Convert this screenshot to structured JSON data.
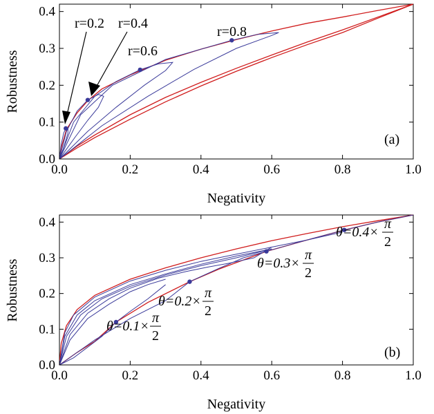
{
  "chart_data": [
    {
      "type": "line",
      "panel_label": "(a)",
      "xlabel": "Negativity",
      "ylabel": "Robustness",
      "xlim": [
        0,
        1
      ],
      "ylim": [
        0,
        0.42
      ],
      "xticks": [
        "0.0",
        "0.2",
        "0.4",
        "0.6",
        "0.8",
        "1.0"
      ],
      "yticks": [
        "0.0",
        "0.1",
        "0.2",
        "0.3",
        "0.4"
      ],
      "boundary_color": "#d01c1c",
      "curve_color": "#3a3a9a",
      "point_color": "#3a3a9a",
      "bounds": {
        "upper": [
          [
            0,
            0
          ],
          [
            0.005,
            0.03
          ],
          [
            0.02,
            0.08
          ],
          [
            0.05,
            0.125
          ],
          [
            0.08,
            0.158
          ],
          [
            0.12,
            0.19
          ],
          [
            0.2,
            0.228
          ],
          [
            0.3,
            0.268
          ],
          [
            0.4,
            0.298
          ],
          [
            0.5,
            0.324
          ],
          [
            0.6,
            0.347
          ],
          [
            0.7,
            0.368
          ],
          [
            0.8,
            0.385
          ],
          [
            0.9,
            0.403
          ],
          [
            1.0,
            0.42
          ]
        ],
        "lower": [
          [
            0,
            0
          ],
          [
            0.05,
            0.03
          ],
          [
            0.1,
            0.058
          ],
          [
            0.2,
            0.108
          ],
          [
            0.3,
            0.155
          ],
          [
            0.4,
            0.198
          ],
          [
            0.5,
            0.238
          ],
          [
            0.6,
            0.275
          ],
          [
            0.7,
            0.31
          ],
          [
            0.8,
            0.343
          ],
          [
            0.9,
            0.382
          ],
          [
            1.0,
            0.42
          ]
        ],
        "lower2": [
          [
            0,
            0
          ],
          [
            0.05,
            0.035
          ],
          [
            0.1,
            0.065
          ],
          [
            0.2,
            0.12
          ],
          [
            0.3,
            0.167
          ],
          [
            0.4,
            0.208
          ],
          [
            0.5,
            0.246
          ],
          [
            0.6,
            0.282
          ],
          [
            0.7,
            0.317
          ],
          [
            0.8,
            0.35
          ],
          [
            0.9,
            0.385
          ],
          [
            1.0,
            0.42
          ]
        ]
      },
      "loops": [
        {
          "label": "r=0.2",
          "point": [
            0.018,
            0.083
          ],
          "path": [
            [
              0,
              0
            ],
            [
              0.005,
              0.04
            ],
            [
              0.012,
              0.07
            ],
            [
              0.018,
              0.083
            ],
            [
              0.024,
              0.082
            ],
            [
              0.024,
              0.07
            ],
            [
              0.018,
              0.05
            ],
            [
              0.01,
              0.025
            ],
            [
              0,
              0
            ]
          ]
        },
        {
          "label": "r=0.4",
          "point": [
            0.08,
            0.16
          ],
          "path": [
            [
              0,
              0
            ],
            [
              0.02,
              0.075
            ],
            [
              0.05,
              0.13
            ],
            [
              0.08,
              0.16
            ],
            [
              0.11,
              0.175
            ],
            [
              0.125,
              0.17
            ],
            [
              0.11,
              0.14
            ],
            [
              0.08,
              0.105
            ],
            [
              0.045,
              0.06
            ],
            [
              0.015,
              0.02
            ],
            [
              0,
              0
            ]
          ]
        },
        {
          "label": "r=0.6",
          "point": [
            0.228,
            0.242
          ],
          "path": [
            [
              0,
              0
            ],
            [
              0.04,
              0.1
            ],
            [
              0.1,
              0.17
            ],
            [
              0.16,
              0.21
            ],
            [
              0.228,
              0.242
            ],
            [
              0.28,
              0.258
            ],
            [
              0.32,
              0.262
            ],
            [
              0.3,
              0.24
            ],
            [
              0.24,
              0.2
            ],
            [
              0.16,
              0.14
            ],
            [
              0.08,
              0.075
            ],
            [
              0.02,
              0.018
            ],
            [
              0,
              0
            ]
          ]
        },
        {
          "label": "r=0.8",
          "point": [
            0.487,
            0.322
          ],
          "path": [
            [
              0,
              0
            ],
            [
              0.06,
              0.12
            ],
            [
              0.15,
              0.2
            ],
            [
              0.3,
              0.27
            ],
            [
              0.487,
              0.322
            ],
            [
              0.56,
              0.338
            ],
            [
              0.62,
              0.343
            ],
            [
              0.6,
              0.335
            ],
            [
              0.5,
              0.3
            ],
            [
              0.38,
              0.243
            ],
            [
              0.25,
              0.17
            ],
            [
              0.12,
              0.09
            ],
            [
              0.03,
              0.022
            ],
            [
              0,
              0
            ]
          ]
        }
      ]
    },
    {
      "type": "line",
      "panel_label": "(b)",
      "xlabel": "Negativity",
      "ylabel": "Robustness",
      "xlim": [
        0,
        1
      ],
      "ylim": [
        0,
        0.42
      ],
      "xticks": [
        "0.0",
        "0.2",
        "0.4",
        "0.6",
        "0.8",
        "1.0"
      ],
      "yticks": [
        "0.0",
        "0.1",
        "0.2",
        "0.3",
        "0.4"
      ],
      "boundary_color": "#d01c1c",
      "curve_color": "#3a3a9a",
      "point_color": "#3a3a9a",
      "bounds": {
        "upper": [
          [
            0,
            0
          ],
          [
            0.005,
            0.06
          ],
          [
            0.02,
            0.11
          ],
          [
            0.05,
            0.155
          ],
          [
            0.1,
            0.195
          ],
          [
            0.2,
            0.24
          ],
          [
            0.3,
            0.272
          ],
          [
            0.4,
            0.3
          ],
          [
            0.5,
            0.325
          ],
          [
            0.6,
            0.348
          ],
          [
            0.7,
            0.368
          ],
          [
            0.8,
            0.387
          ],
          [
            0.9,
            0.404
          ],
          [
            1.0,
            0.42
          ]
        ],
        "lower": [
          [
            0,
            0
          ],
          [
            0.05,
            0.035
          ],
          [
            0.1,
            0.066
          ],
          [
            0.16,
            0.12
          ],
          [
            0.25,
            0.175
          ],
          [
            0.368,
            0.233
          ],
          [
            0.45,
            0.268
          ],
          [
            0.585,
            0.318
          ],
          [
            0.7,
            0.35
          ],
          [
            0.805,
            0.378
          ],
          [
            0.9,
            0.4
          ],
          [
            1.0,
            0.42
          ]
        ]
      },
      "families": [
        [
          [
            0,
            0
          ],
          [
            0.03,
            0.07
          ],
          [
            0.08,
            0.13
          ],
          [
            0.14,
            0.17
          ],
          [
            0.2,
            0.205
          ],
          [
            0.25,
            0.225
          ],
          [
            0.3,
            0.24
          ]
        ],
        [
          [
            0,
            0
          ],
          [
            0.03,
            0.085
          ],
          [
            0.08,
            0.145
          ],
          [
            0.14,
            0.185
          ],
          [
            0.2,
            0.215
          ],
          [
            0.28,
            0.243
          ],
          [
            0.36,
            0.262
          ],
          [
            0.42,
            0.274
          ],
          [
            0.48,
            0.285
          ],
          [
            0.55,
            0.3
          ],
          [
            0.6,
            0.33
          ]
        ],
        [
          [
            0,
            0
          ],
          [
            0.02,
            0.08
          ],
          [
            0.06,
            0.14
          ],
          [
            0.12,
            0.185
          ],
          [
            0.2,
            0.22
          ],
          [
            0.3,
            0.252
          ],
          [
            0.4,
            0.278
          ],
          [
            0.5,
            0.3
          ],
          [
            0.6,
            0.325
          ]
        ],
        [
          [
            0,
            0
          ],
          [
            0.015,
            0.08
          ],
          [
            0.05,
            0.14
          ],
          [
            0.1,
            0.18
          ],
          [
            0.2,
            0.225
          ],
          [
            0.3,
            0.255
          ],
          [
            0.4,
            0.282
          ],
          [
            0.5,
            0.305
          ],
          [
            0.6,
            0.325
          ]
        ],
        [
          [
            0,
            0
          ],
          [
            0.015,
            0.09
          ],
          [
            0.04,
            0.14
          ],
          [
            0.1,
            0.19
          ],
          [
            0.2,
            0.235
          ],
          [
            0.3,
            0.265
          ],
          [
            0.4,
            0.29
          ],
          [
            0.5,
            0.31
          ],
          [
            0.6,
            0.33
          ],
          [
            0.7,
            0.35
          ],
          [
            0.8,
            0.372
          ]
        ],
        [
          [
            0,
            0
          ],
          [
            0.04,
            0.02
          ],
          [
            0.08,
            0.05
          ],
          [
            0.12,
            0.08
          ],
          [
            0.16,
            0.12
          ],
          [
            0.2,
            0.15
          ],
          [
            0.25,
            0.185
          ],
          [
            0.3,
            0.225
          ]
        ],
        [
          [
            0,
            0
          ],
          [
            0.05,
            0.035
          ],
          [
            0.1,
            0.07
          ],
          [
            0.2,
            0.13
          ],
          [
            0.3,
            0.18
          ],
          [
            0.368,
            0.233
          ],
          [
            0.45,
            0.27
          ],
          [
            0.52,
            0.3
          ],
          [
            0.585,
            0.318
          ],
          [
            0.7,
            0.35
          ],
          [
            0.805,
            0.378
          ],
          [
            0.9,
            0.4
          ],
          [
            1.0,
            0.42
          ]
        ]
      ],
      "points": [
        {
          "label_prefix": "θ=0.1×",
          "pi": "π",
          "den": "2",
          "point": [
            0.16,
            0.12
          ]
        },
        {
          "label_prefix": "θ=0.2×",
          "pi": "π",
          "den": "2",
          "point": [
            0.368,
            0.233
          ]
        },
        {
          "label_prefix": "θ=0.3×",
          "pi": "π",
          "den": "2",
          "point": [
            0.585,
            0.318
          ]
        },
        {
          "label_prefix": "θ=0.4×",
          "pi": "π",
          "den": "2",
          "point": [
            0.805,
            0.378
          ]
        }
      ]
    }
  ]
}
